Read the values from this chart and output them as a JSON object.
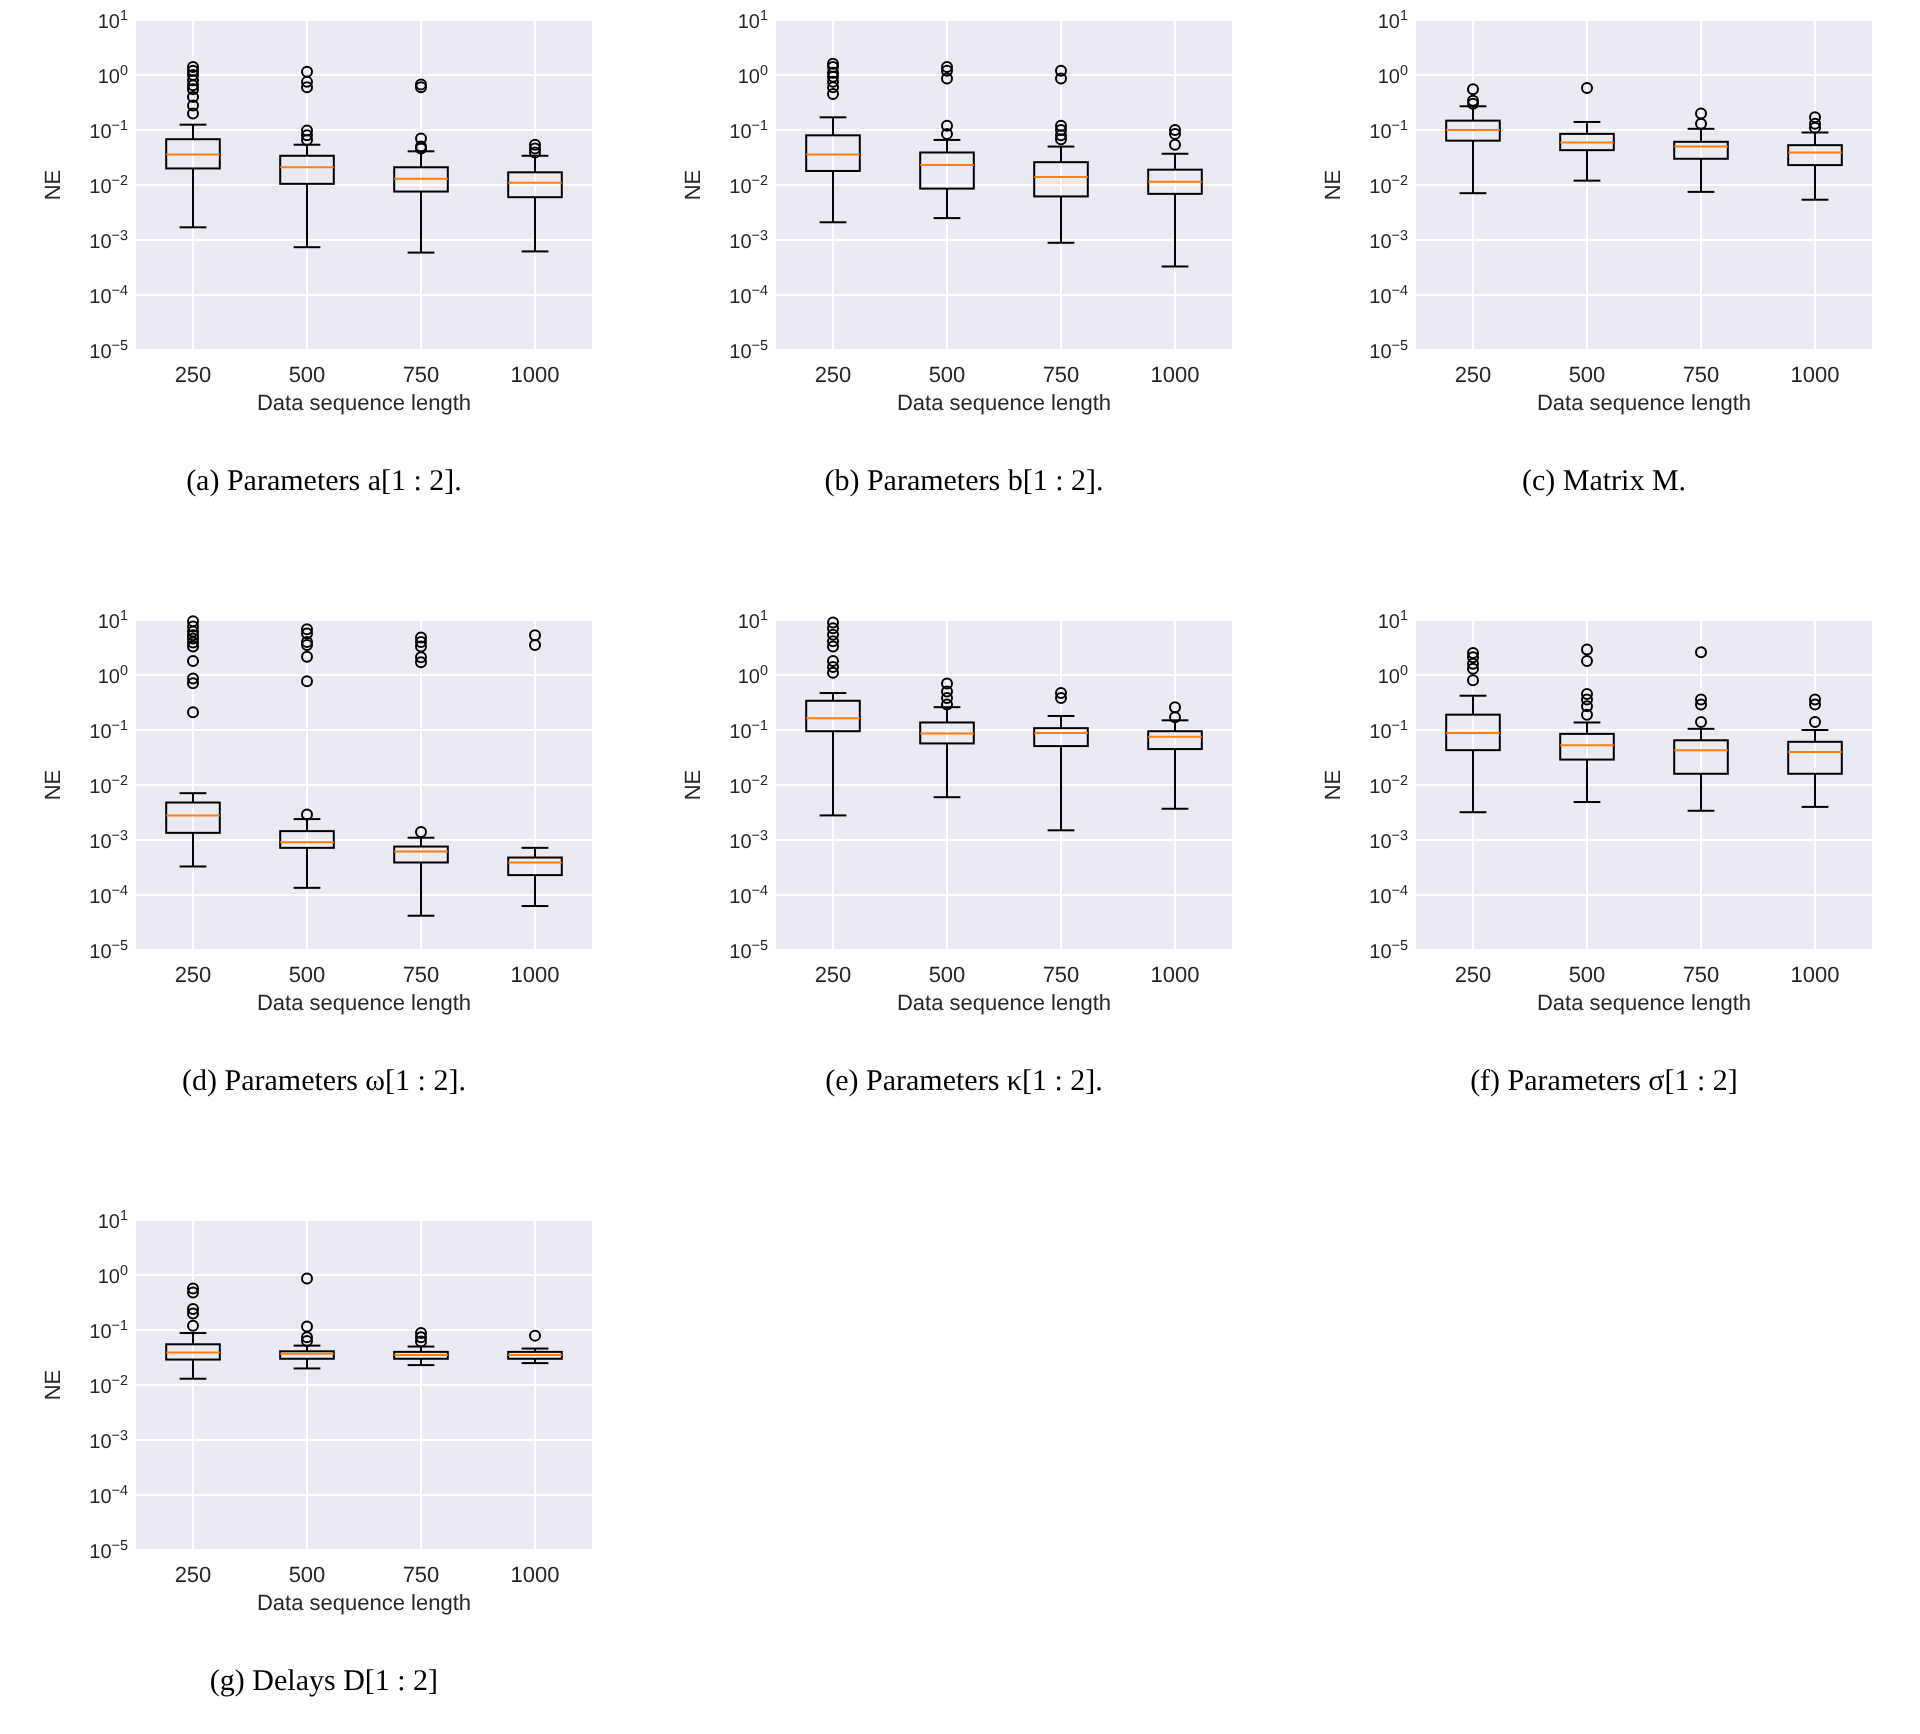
{
  "chart_data": [
    {
      "type": "box",
      "title": "(a) Parameters a[1 : 2].",
      "xlabel": "Data sequence length",
      "ylabel": "NE",
      "categories": [
        "250",
        "500",
        "750",
        "1000"
      ],
      "log": true,
      "grid": true,
      "ylim": [
        1e-05,
        10
      ],
      "yticks": [
        {
          "value": 1e-05,
          "label": "10$^{−5}$"
        },
        {
          "value": 0.0001,
          "label": "10$^{−4}$"
        },
        {
          "value": 0.001,
          "label": "10$^{−3}$"
        },
        {
          "value": 0.01,
          "label": "10$^{−2}$"
        },
        {
          "value": 0.1,
          "label": "10$^{−1}$"
        },
        {
          "value": 1,
          "label": "10$^{0}$"
        },
        {
          "value": 10,
          "label": "10$^{1}$"
        }
      ],
      "boxes": [
        {
          "low": 0.0017,
          "q1": 0.02,
          "median": 0.036,
          "q3": 0.068,
          "high": 0.125,
          "outliers": [
            1.4,
            1.2,
            1.0,
            0.8,
            0.65,
            0.55,
            0.4,
            0.28,
            0.2
          ]
        },
        {
          "low": 0.00074,
          "q1": 0.0105,
          "median": 0.021,
          "q3": 0.034,
          "high": 0.054,
          "outliers": [
            1.15,
            0.75,
            0.6,
            0.098,
            0.08,
            0.066
          ]
        },
        {
          "low": 0.00059,
          "q1": 0.0076,
          "median": 0.013,
          "q3": 0.021,
          "high": 0.041,
          "outliers": [
            0.67,
            0.6,
            0.07,
            0.05,
            0.046
          ]
        },
        {
          "low": 0.00062,
          "q1": 0.006,
          "median": 0.011,
          "q3": 0.017,
          "high": 0.034,
          "outliers": [
            0.054,
            0.046,
            0.039
          ]
        }
      ]
    },
    {
      "type": "box",
      "title": "(b) Parameters b[1 : 2].",
      "xlabel": "Data sequence length",
      "ylabel": "NE",
      "categories": [
        "250",
        "500",
        "750",
        "1000"
      ],
      "log": true,
      "grid": true,
      "ylim": [
        1e-05,
        10
      ],
      "yticks": [
        {
          "value": 1e-05,
          "label": "10$^{−5}$"
        },
        {
          "value": 0.0001,
          "label": "10$^{−4}$"
        },
        {
          "value": 0.001,
          "label": "10$^{−3}$"
        },
        {
          "value": 0.01,
          "label": "10$^{−2}$"
        },
        {
          "value": 0.1,
          "label": "10$^{−1}$"
        },
        {
          "value": 1,
          "label": "10$^{0}$"
        },
        {
          "value": 10,
          "label": "10$^{1}$"
        }
      ],
      "boxes": [
        {
          "low": 0.0021,
          "q1": 0.018,
          "median": 0.036,
          "q3": 0.08,
          "high": 0.17,
          "outliers": [
            1.6,
            1.4,
            1.1,
            0.93,
            0.75,
            0.6,
            0.45
          ]
        },
        {
          "low": 0.0025,
          "q1": 0.0086,
          "median": 0.023,
          "q3": 0.039,
          "high": 0.066,
          "outliers": [
            1.4,
            1.2,
            0.86,
            0.12,
            0.085
          ]
        },
        {
          "low": 0.00089,
          "q1": 0.0062,
          "median": 0.014,
          "q3": 0.026,
          "high": 0.05,
          "outliers": [
            1.2,
            0.86,
            0.12,
            0.1,
            0.08,
            0.068
          ]
        },
        {
          "low": 0.00033,
          "q1": 0.0069,
          "median": 0.0115,
          "q3": 0.019,
          "high": 0.037,
          "outliers": [
            0.1,
            0.085,
            0.054
          ]
        }
      ]
    },
    {
      "type": "box",
      "title": "(c) Matrix M.",
      "xlabel": "Data sequence length",
      "ylabel": "NE",
      "categories": [
        "250",
        "500",
        "750",
        "1000"
      ],
      "log": true,
      "grid": true,
      "ylim": [
        1e-05,
        10
      ],
      "yticks": [
        {
          "value": 1e-05,
          "label": "10$^{−5}$"
        },
        {
          "value": 0.0001,
          "label": "10$^{−4}$"
        },
        {
          "value": 0.001,
          "label": "10$^{−3}$"
        },
        {
          "value": 0.01,
          "label": "10$^{−2}$"
        },
        {
          "value": 0.1,
          "label": "10$^{−1}$"
        },
        {
          "value": 1,
          "label": "10$^{0}$"
        },
        {
          "value": 10,
          "label": "10$^{1}$"
        }
      ],
      "boxes": [
        {
          "low": 0.0071,
          "q1": 0.064,
          "median": 0.1,
          "q3": 0.148,
          "high": 0.27,
          "outliers": [
            0.55,
            0.34,
            0.3
          ]
        },
        {
          "low": 0.012,
          "q1": 0.043,
          "median": 0.059,
          "q3": 0.085,
          "high": 0.14,
          "outliers": [
            0.58
          ]
        },
        {
          "low": 0.0075,
          "q1": 0.03,
          "median": 0.05,
          "q3": 0.061,
          "high": 0.105,
          "outliers": [
            0.2,
            0.13
          ]
        },
        {
          "low": 0.0054,
          "q1": 0.023,
          "median": 0.039,
          "q3": 0.053,
          "high": 0.09,
          "outliers": [
            0.17,
            0.13,
            0.11
          ]
        }
      ]
    },
    {
      "type": "box",
      "title": "(d) Parameters ω[1 : 2].",
      "xlabel": "Data sequence length",
      "ylabel": "NE",
      "categories": [
        "250",
        "500",
        "750",
        "1000"
      ],
      "log": true,
      "grid": true,
      "ylim": [
        1e-05,
        10
      ],
      "yticks": [
        {
          "value": 1e-05,
          "label": "10$^{−5}$"
        },
        {
          "value": 0.0001,
          "label": "10$^{−4}$"
        },
        {
          "value": 0.001,
          "label": "10$^{−3}$"
        },
        {
          "value": 0.01,
          "label": "10$^{−2}$"
        },
        {
          "value": 0.1,
          "label": "10$^{−1}$"
        },
        {
          "value": 1,
          "label": "10$^{0}$"
        },
        {
          "value": 10,
          "label": "10$^{1}$"
        }
      ],
      "boxes": [
        {
          "low": 0.00033,
          "q1": 0.00135,
          "median": 0.0028,
          "q3": 0.0048,
          "high": 0.0071,
          "outliers": [
            9.5,
            7.6,
            6.2,
            5.3,
            4.6,
            3.9,
            3.3,
            1.8,
            0.86,
            0.71,
            0.21
          ]
        },
        {
          "low": 0.000135,
          "q1": 0.00072,
          "median": 0.00091,
          "q3": 0.00145,
          "high": 0.0024,
          "outliers": [
            6.8,
            5.7,
            4.0,
            3.5,
            2.15,
            0.77,
            0.0029
          ]
        },
        {
          "low": 4.2e-05,
          "q1": 0.00039,
          "median": 0.00062,
          "q3": 0.00076,
          "high": 0.0011,
          "outliers": [
            4.8,
            4.0,
            3.3,
            2.1,
            1.7,
            0.0014
          ]
        },
        {
          "low": 6.3e-05,
          "q1": 0.00023,
          "median": 0.00039,
          "q3": 0.00048,
          "high": 0.00072,
          "outliers": [
            5.3,
            3.5
          ]
        }
      ]
    },
    {
      "type": "box",
      "title": "(e) Parameters κ[1 : 2].",
      "xlabel": "Data sequence length",
      "ylabel": "NE",
      "categories": [
        "250",
        "500",
        "750",
        "1000"
      ],
      "log": true,
      "grid": true,
      "ylim": [
        1e-05,
        10
      ],
      "yticks": [
        {
          "value": 1e-05,
          "label": "10$^{−5}$"
        },
        {
          "value": 0.0001,
          "label": "10$^{−4}$"
        },
        {
          "value": 0.001,
          "label": "10$^{−3}$"
        },
        {
          "value": 0.01,
          "label": "10$^{−2}$"
        },
        {
          "value": 0.1,
          "label": "10$^{−1}$"
        },
        {
          "value": 1,
          "label": "10$^{0}$"
        },
        {
          "value": 10,
          "label": "10$^{1}$"
        }
      ],
      "boxes": [
        {
          "low": 0.0028,
          "q1": 0.095,
          "median": 0.163,
          "q3": 0.34,
          "high": 0.47,
          "outliers": [
            9,
            7.1,
            5.4,
            4.1,
            3.3,
            1.8,
            1.4,
            1.1
          ]
        },
        {
          "low": 0.006,
          "q1": 0.057,
          "median": 0.086,
          "q3": 0.137,
          "high": 0.26,
          "outliers": [
            0.7,
            0.5,
            0.38,
            0.29
          ]
        },
        {
          "low": 0.0015,
          "q1": 0.051,
          "median": 0.088,
          "q3": 0.108,
          "high": 0.18,
          "outliers": [
            0.47,
            0.38
          ]
        },
        {
          "low": 0.0037,
          "q1": 0.045,
          "median": 0.075,
          "q3": 0.095,
          "high": 0.15,
          "outliers": [
            0.26,
            0.17
          ]
        }
      ]
    },
    {
      "type": "box",
      "title": "(f) Parameters σ[1 : 2]",
      "xlabel": "Data sequence length",
      "ylabel": "NE",
      "categories": [
        "250",
        "500",
        "750",
        "1000"
      ],
      "log": true,
      "grid": true,
      "ylim": [
        1e-05,
        10
      ],
      "yticks": [
        {
          "value": 1e-05,
          "label": "10$^{−5}$"
        },
        {
          "value": 0.0001,
          "label": "10$^{−4}$"
        },
        {
          "value": 0.001,
          "label": "10$^{−3}$"
        },
        {
          "value": 0.01,
          "label": "10$^{−2}$"
        },
        {
          "value": 0.1,
          "label": "10$^{−1}$"
        },
        {
          "value": 1,
          "label": "10$^{0}$"
        },
        {
          "value": 10,
          "label": "10$^{1}$"
        }
      ],
      "boxes": [
        {
          "low": 0.0032,
          "q1": 0.043,
          "median": 0.088,
          "q3": 0.19,
          "high": 0.42,
          "outliers": [
            2.5,
            2.1,
            1.6,
            1.3,
            0.8
          ]
        },
        {
          "low": 0.0049,
          "q1": 0.029,
          "median": 0.053,
          "q3": 0.085,
          "high": 0.137,
          "outliers": [
            2.9,
            1.8,
            0.45,
            0.36,
            0.27,
            0.19
          ]
        },
        {
          "low": 0.0034,
          "q1": 0.016,
          "median": 0.043,
          "q3": 0.065,
          "high": 0.105,
          "outliers": [
            2.6,
            0.36,
            0.29,
            0.14
          ]
        },
        {
          "low": 0.004,
          "q1": 0.016,
          "median": 0.04,
          "q3": 0.061,
          "high": 0.1,
          "outliers": [
            0.36,
            0.29,
            0.14
          ]
        }
      ]
    },
    {
      "type": "box",
      "title": "(g) Delays D[1 : 2]",
      "xlabel": "Data sequence length",
      "ylabel": "NE",
      "categories": [
        "250",
        "500",
        "750",
        "1000"
      ],
      "log": true,
      "grid": true,
      "ylim": [
        1e-05,
        10
      ],
      "yticks": [
        {
          "value": 1e-05,
          "label": "10$^{−5}$"
        },
        {
          "value": 0.0001,
          "label": "10$^{−4}$"
        },
        {
          "value": 0.001,
          "label": "10$^{−3}$"
        },
        {
          "value": 0.01,
          "label": "10$^{−2}$"
        },
        {
          "value": 0.1,
          "label": "10$^{−1}$"
        },
        {
          "value": 1,
          "label": "10$^{0}$"
        },
        {
          "value": 10,
          "label": "10$^{1}$"
        }
      ],
      "boxes": [
        {
          "low": 0.013,
          "q1": 0.029,
          "median": 0.039,
          "q3": 0.055,
          "high": 0.088,
          "outliers": [
            0.57,
            0.48,
            0.24,
            0.2,
            0.12
          ]
        },
        {
          "low": 0.02,
          "q1": 0.03,
          "median": 0.037,
          "q3": 0.041,
          "high": 0.052,
          "outliers": [
            0.86,
            0.116,
            0.074,
            0.063
          ]
        },
        {
          "low": 0.023,
          "q1": 0.03,
          "median": 0.035,
          "q3": 0.04,
          "high": 0.05,
          "outliers": [
            0.088,
            0.074,
            0.062
          ]
        },
        {
          "low": 0.025,
          "q1": 0.03,
          "median": 0.035,
          "q3": 0.04,
          "high": 0.046,
          "outliers": [
            0.079
          ]
        }
      ]
    }
  ]
}
